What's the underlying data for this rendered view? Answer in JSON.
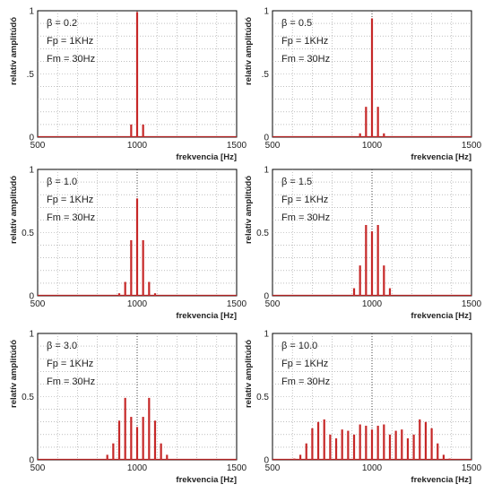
{
  "chart_data": [
    {
      "type": "bar",
      "annotations": [
        "β = 0.2",
        "Fp = 1KHz",
        "Fm = 30Hz"
      ],
      "xlabel": "frekvencia [Hz]",
      "ylabel": "relatív amplitúdó",
      "xlim": [
        500,
        1500
      ],
      "ylim": [
        0,
        1
      ],
      "xticks": [
        "500",
        "1000",
        "1500"
      ],
      "yticks": [
        {
          "v": 0,
          "t": "0"
        },
        {
          "v": 0.5,
          "t": ".5"
        },
        {
          "v": 1,
          "t": "1"
        }
      ],
      "grid": true,
      "x": [
        970,
        1000,
        1030
      ],
      "values": [
        0.1,
        0.99,
        0.1
      ]
    },
    {
      "type": "bar",
      "annotations": [
        "β = 0.5",
        "Fp = 1KHz",
        "Fm = 30Hz"
      ],
      "xlabel": "frekvencia [Hz]",
      "ylabel": "relatív amplitúdó",
      "xlim": [
        500,
        1500
      ],
      "ylim": [
        0,
        1
      ],
      "xticks": [
        "500",
        "1000",
        "1500"
      ],
      "yticks": [
        {
          "v": 0,
          "t": "0"
        },
        {
          "v": 0.5,
          "t": ".5"
        },
        {
          "v": 1,
          "t": "1"
        }
      ],
      "grid": true,
      "x": [
        940,
        970,
        1000,
        1030,
        1060
      ],
      "values": [
        0.03,
        0.24,
        0.94,
        0.24,
        0.03
      ]
    },
    {
      "type": "bar",
      "annotations": [
        "β = 1.0",
        "Fp = 1KHz",
        "Fm = 30Hz"
      ],
      "xlabel": "frekvencia [Hz]",
      "ylabel": "relatív amplitúdó",
      "xlim": [
        500,
        1500
      ],
      "ylim": [
        0,
        1
      ],
      "xticks": [
        "500",
        "1000",
        "1500"
      ],
      "yticks": [
        {
          "v": 0,
          "t": "0"
        },
        {
          "v": 0.5,
          "t": "0.5"
        },
        {
          "v": 1,
          "t": "1"
        }
      ],
      "grid": true,
      "x": [
        910,
        940,
        970,
        1000,
        1030,
        1060,
        1090
      ],
      "values": [
        0.02,
        0.11,
        0.44,
        0.77,
        0.44,
        0.11,
        0.02
      ]
    },
    {
      "type": "bar",
      "annotations": [
        "β = 1.5",
        "Fp = 1KHz",
        "Fm = 30Hz"
      ],
      "xlabel": "frekvencia [Hz]",
      "ylabel": "relatív amplitúdó",
      "xlim": [
        500,
        1500
      ],
      "ylim": [
        0,
        1
      ],
      "xticks": [
        "500",
        "1000",
        "1500"
      ],
      "yticks": [
        {
          "v": 0,
          "t": "0"
        },
        {
          "v": 0.5,
          "t": "0.5"
        },
        {
          "v": 1,
          "t": "1"
        }
      ],
      "grid": true,
      "x": [
        910,
        940,
        970,
        1000,
        1030,
        1060,
        1090
      ],
      "values": [
        0.06,
        0.24,
        0.56,
        0.51,
        0.56,
        0.24,
        0.06
      ]
    },
    {
      "type": "bar",
      "annotations": [
        "β = 3.0",
        "Fp = 1KHz",
        "Fm = 30Hz"
      ],
      "xlabel": "frekvencia [Hz]",
      "ylabel": "relatív amplitúdó",
      "xlim": [
        500,
        1500
      ],
      "ylim": [
        0,
        1
      ],
      "xticks": [
        "500",
        "1000",
        "1500"
      ],
      "yticks": [
        {
          "v": 0,
          "t": "0"
        },
        {
          "v": 0.5,
          "t": "0.5"
        },
        {
          "v": 1,
          "t": "1"
        }
      ],
      "grid": true,
      "x": [
        850,
        880,
        910,
        940,
        970,
        1000,
        1030,
        1060,
        1090,
        1120,
        1150
      ],
      "values": [
        0.04,
        0.13,
        0.31,
        0.49,
        0.34,
        0.26,
        0.34,
        0.49,
        0.31,
        0.13,
        0.04
      ]
    },
    {
      "type": "bar",
      "annotations": [
        "β = 10.0",
        "Fp = 1KHz",
        "Fm = 30Hz"
      ],
      "xlabel": "frekvencia [Hz]",
      "ylabel": "relatív amplitúdó",
      "xlim": [
        500,
        1500
      ],
      "ylim": [
        0,
        1
      ],
      "xticks": [
        "500",
        "1000",
        "1500"
      ],
      "yticks": [
        {
          "v": 0,
          "t": "0"
        },
        {
          "v": 0.5,
          "t": "0.5"
        },
        {
          "v": 1,
          "t": "1"
        }
      ],
      "grid": true,
      "x": [
        610,
        640,
        670,
        700,
        730,
        760,
        790,
        820,
        850,
        880,
        910,
        940,
        970,
        1000,
        1030,
        1060,
        1090,
        1120,
        1150,
        1180,
        1210,
        1240,
        1270,
        1300,
        1330,
        1360,
        1390
      ],
      "values": [
        0.01,
        0.04,
        0.13,
        0.25,
        0.3,
        0.32,
        0.2,
        0.17,
        0.24,
        0.23,
        0.2,
        0.28,
        0.27,
        0.24,
        0.27,
        0.28,
        0.2,
        0.23,
        0.24,
        0.17,
        0.2,
        0.32,
        0.3,
        0.25,
        0.13,
        0.04,
        0.01
      ]
    }
  ]
}
